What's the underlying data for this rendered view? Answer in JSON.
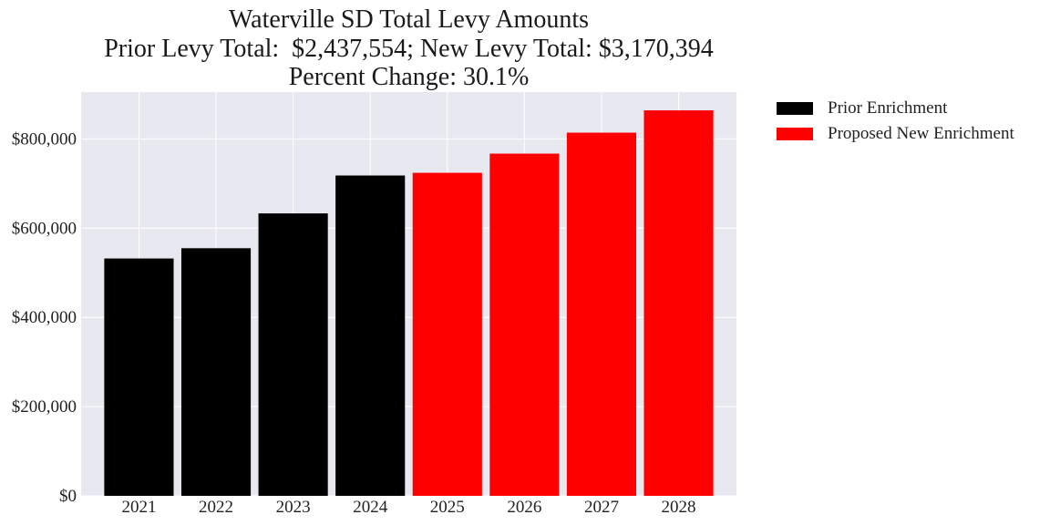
{
  "chart_data": {
    "type": "bar",
    "title": "Waterville SD Total Levy Amounts",
    "subtitle_lines": [
      "Prior Levy Total:  $2,437,554; New Levy Total: $3,170,394",
      "Percent Change: 30.1%"
    ],
    "categories": [
      "2021",
      "2022",
      "2023",
      "2024",
      "2025",
      "2026",
      "2027",
      "2028"
    ],
    "series": [
      {
        "name": "Prior Enrichment",
        "color": "#000000",
        "values": [
          532000,
          555000,
          633000,
          718000,
          null,
          null,
          null,
          null
        ]
      },
      {
        "name": "Proposed New Enrichment",
        "color": "#ff0000",
        "values": [
          null,
          null,
          null,
          null,
          724000,
          767000,
          814000,
          864000
        ]
      }
    ],
    "yticks": [
      0,
      200000,
      400000,
      600000,
      800000
    ],
    "ytick_labels": [
      "$0",
      "$200,000",
      "$400,000",
      "$600,000",
      "$800,000"
    ],
    "ylim": [
      0,
      905000
    ],
    "xlabel": "",
    "ylabel": "",
    "grid": true,
    "legend_position": "outside-top-right",
    "plot_background": "#e8e8f0"
  }
}
